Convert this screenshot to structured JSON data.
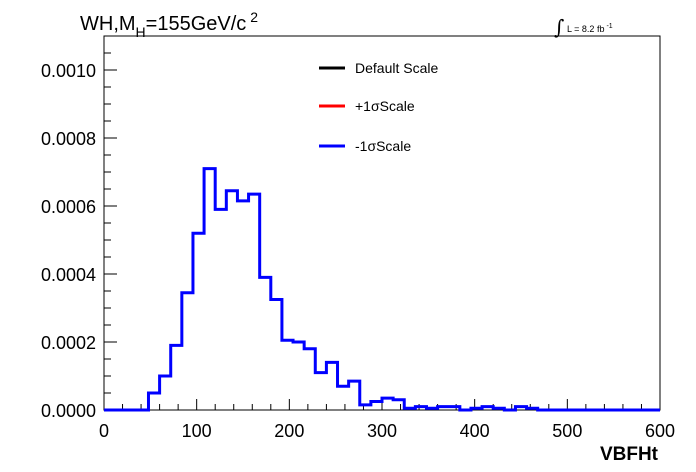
{
  "chart_data": {
    "type": "line",
    "title": {
      "main": "WH,M",
      "sub": "H",
      "value": "=155GeV/c",
      "sup": "2"
    },
    "luminosity": {
      "integral": "∫",
      "text": "L = 8.2 fb",
      "sup": "-1"
    },
    "xlabel": "VBFHt",
    "ylabel": "",
    "xlim": [
      0,
      600
    ],
    "ylim": [
      0,
      0.0011
    ],
    "x_ticks": [
      0,
      100,
      200,
      300,
      400,
      500,
      600
    ],
    "x_tick_labels": [
      "0",
      "100",
      "200",
      "300",
      "400",
      "500",
      "600"
    ],
    "y_ticks": [
      0,
      0.0002,
      0.0004,
      0.0006,
      0.0008,
      0.001
    ],
    "y_tick_labels": [
      "0.0000",
      "0.0002",
      "0.0004",
      "0.0006",
      "0.0008",
      "0.0010"
    ],
    "grid": false,
    "legend_position": "top-center",
    "bin_width": 12,
    "bin_edges_start": 0,
    "series": [
      {
        "name": "Default Scale",
        "color": "#000000",
        "visible_line": false,
        "values": []
      },
      {
        "name": "+1σScale",
        "color": "#ff0000",
        "visible_line": false,
        "values": []
      },
      {
        "name": "-1σScale",
        "color": "#0000ff",
        "visible_line": true,
        "values": [
          0,
          0,
          0,
          0,
          5e-05,
          0.0001,
          0.00019,
          0.000345,
          0.00052,
          0.00071,
          0.00059,
          0.000645,
          0.000615,
          0.000635,
          0.00039,
          0.000325,
          0.000205,
          0.0002,
          0.00018,
          0.00011,
          0.00014,
          7e-05,
          8.5e-05,
          1.5e-05,
          2.5e-05,
          3.5e-05,
          3e-05,
          5e-06,
          1e-05,
          5e-06,
          1e-05,
          1e-05,
          0,
          5e-06,
          1e-05,
          5e-06,
          0,
          1e-05,
          5e-06,
          0,
          0,
          0,
          0,
          0,
          0,
          0,
          0,
          0,
          0,
          0
        ]
      }
    ]
  }
}
